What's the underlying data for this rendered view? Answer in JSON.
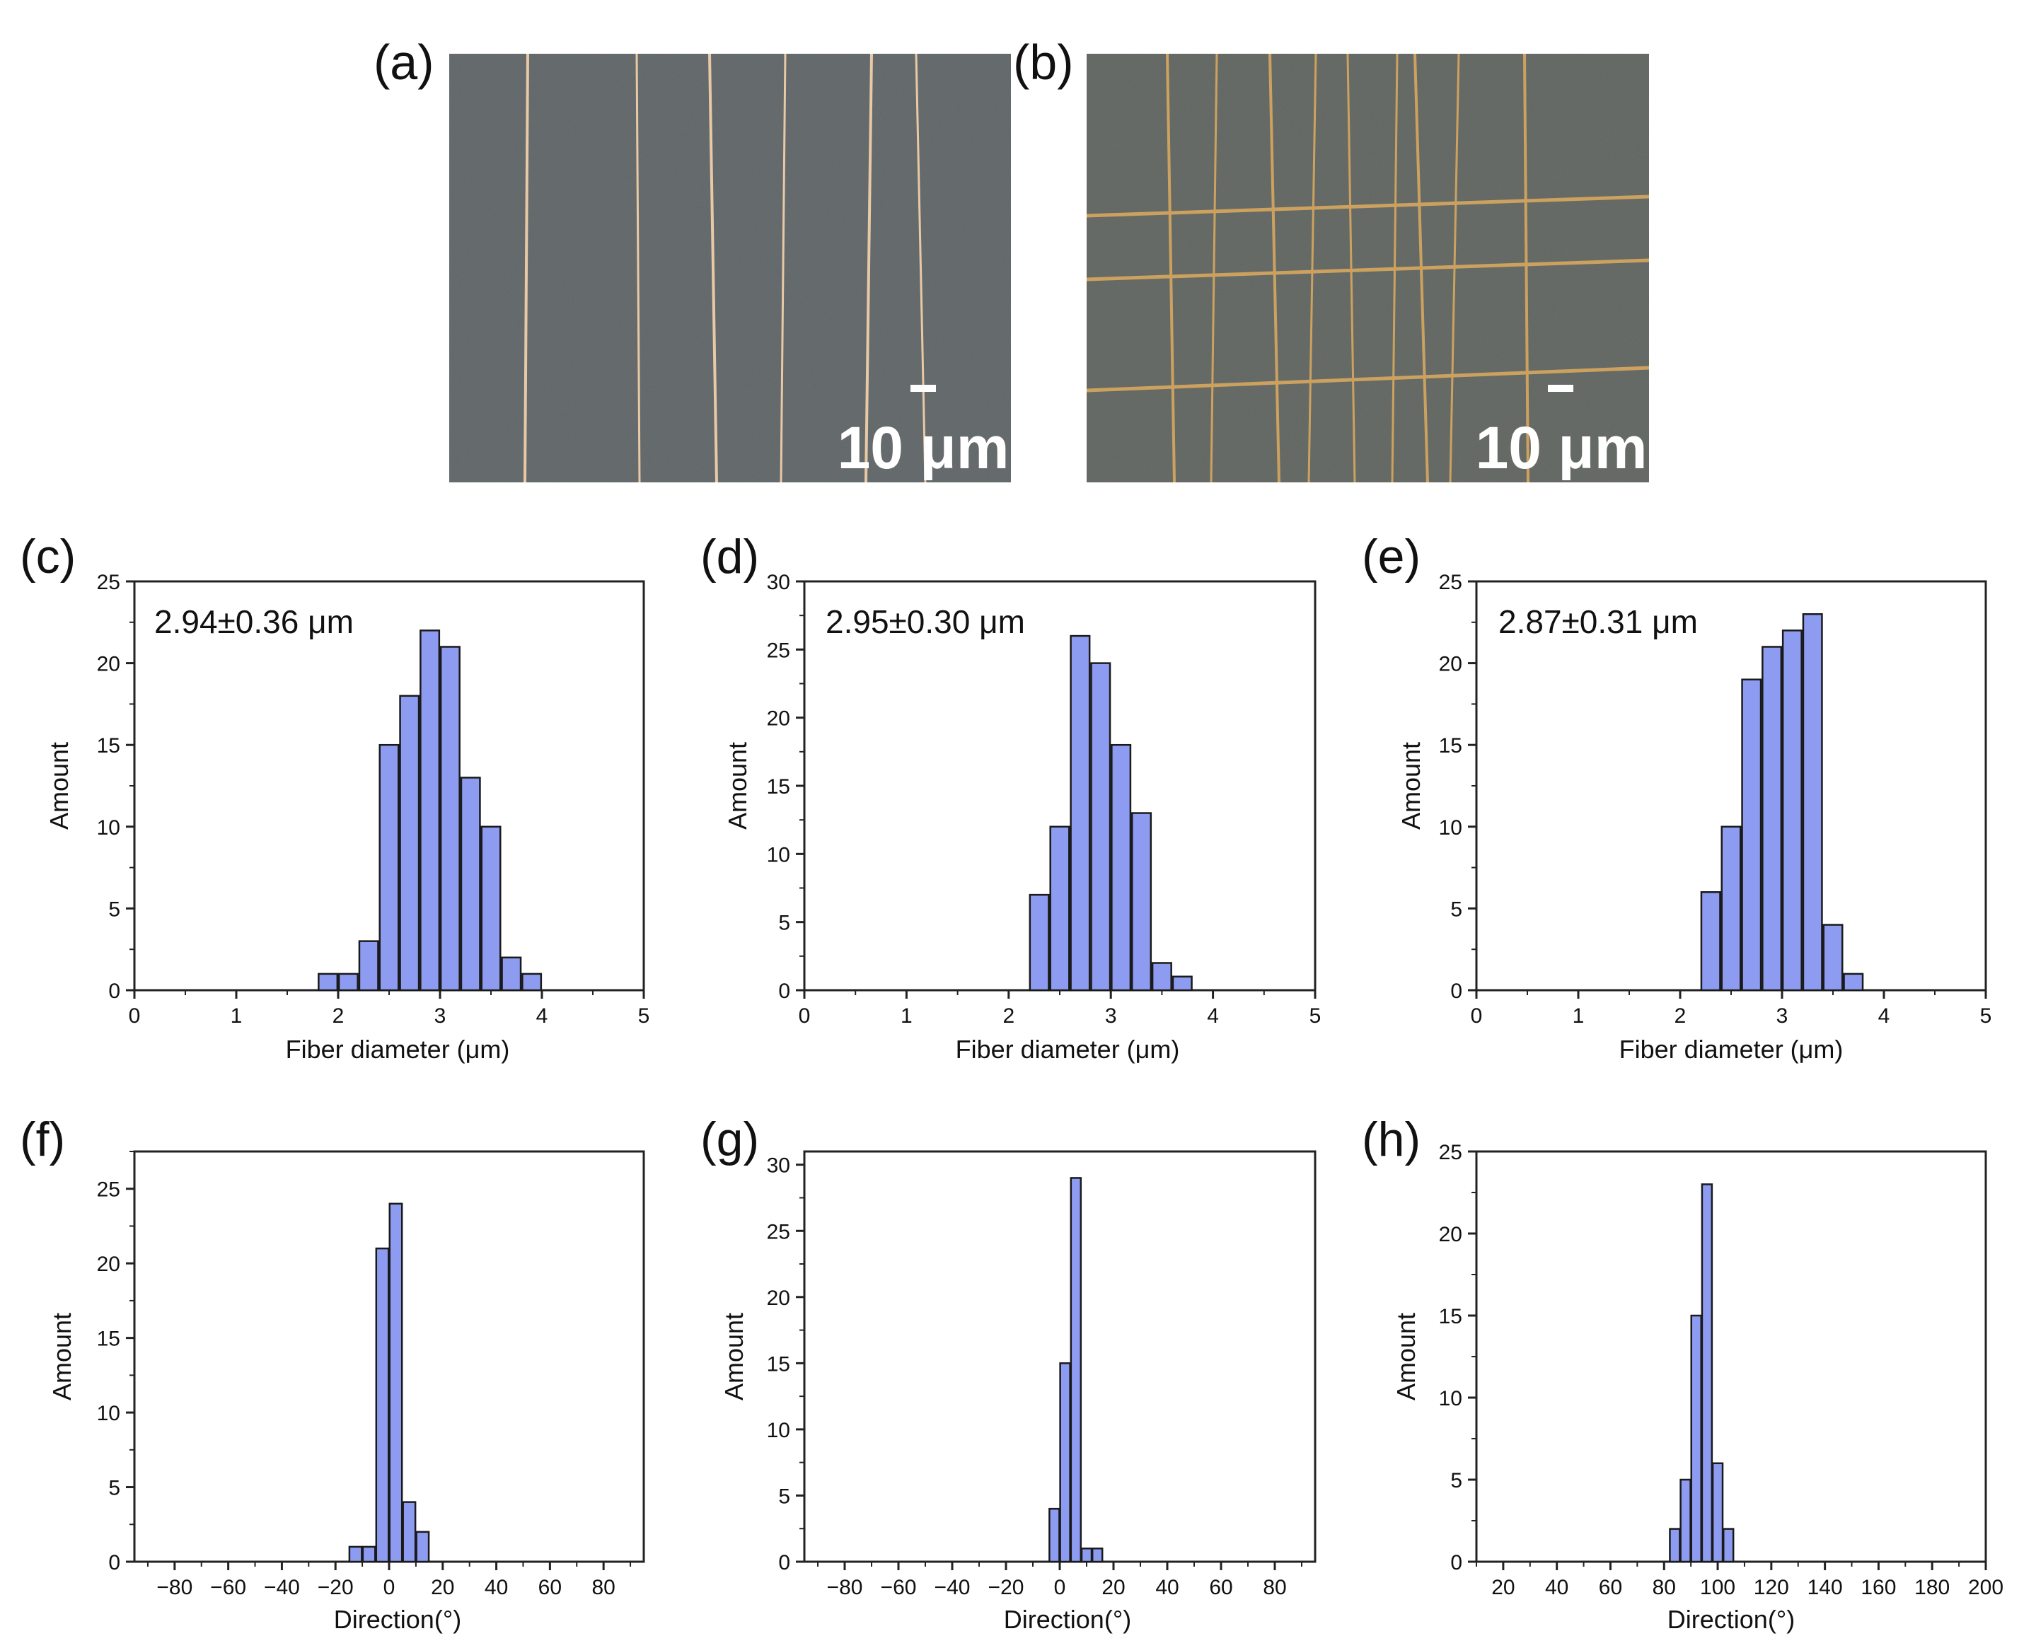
{
  "micrographs": [
    {
      "panel_label": "(a)",
      "scale_bar_label": "10 μm",
      "pattern": "aligned fibers"
    },
    {
      "panel_label": "(b)",
      "scale_bar_label": "10 μm",
      "pattern": "crossed grid fibers"
    }
  ],
  "colors": {
    "bar_fill": "#8d9cf0",
    "bar_stroke": "#1a1a1a",
    "micrograph_bg": "#5f6467",
    "fiber": "#e8c9a6",
    "scale_text": "#ffffff"
  },
  "chart_data": [
    {
      "panel_label": "(c)",
      "type": "bar",
      "annotation": "2.94±0.36 μm",
      "xlabel": "Fiber diameter (μm)",
      "ylabel": "Amount",
      "xlim": [
        0,
        5
      ],
      "ylim": [
        0,
        25
      ],
      "xticks": [
        0,
        1,
        2,
        3,
        4,
        5
      ],
      "yticks": [
        0,
        5,
        10,
        15,
        20,
        25
      ],
      "bin_width": 0.2,
      "x": [
        1.9,
        2.1,
        2.3,
        2.5,
        2.7,
        2.9,
        3.1,
        3.3,
        3.5,
        3.7,
        3.9
      ],
      "values": [
        1,
        1,
        3,
        15,
        18,
        22,
        21,
        13,
        10,
        2,
        1
      ]
    },
    {
      "panel_label": "(d)",
      "type": "bar",
      "annotation": "2.95±0.30 μm",
      "xlabel": "Fiber diameter (μm)",
      "ylabel": "Amount",
      "xlim": [
        0,
        5
      ],
      "ylim": [
        0,
        30
      ],
      "xticks": [
        0,
        1,
        2,
        3,
        4,
        5
      ],
      "yticks": [
        0,
        5,
        10,
        15,
        20,
        25,
        30
      ],
      "bin_width": 0.2,
      "x": [
        2.3,
        2.5,
        2.7,
        2.9,
        3.1,
        3.3,
        3.5,
        3.7
      ],
      "values": [
        7,
        12,
        26,
        24,
        18,
        13,
        2,
        1
      ]
    },
    {
      "panel_label": "(e)",
      "type": "bar",
      "annotation": "2.87±0.31 μm",
      "xlabel": "Fiber diameter (μm)",
      "ylabel": "Amount",
      "xlim": [
        0,
        5
      ],
      "ylim": [
        0,
        25
      ],
      "xticks": [
        0,
        1,
        2,
        3,
        4,
        5
      ],
      "yticks": [
        0,
        5,
        10,
        15,
        20,
        25
      ],
      "bin_width": 0.2,
      "x": [
        2.3,
        2.5,
        2.7,
        2.9,
        3.1,
        3.3,
        3.5,
        3.7
      ],
      "values": [
        6,
        10,
        19,
        21,
        22,
        23,
        4,
        1
      ]
    },
    {
      "panel_label": "(f)",
      "type": "bar",
      "annotation": "",
      "xlabel": "Direction(°)",
      "ylabel": "Amount",
      "xlim": [
        -95,
        95
      ],
      "ylim": [
        0,
        27.5
      ],
      "xticks": [
        -80,
        -60,
        -40,
        -20,
        0,
        20,
        40,
        60,
        80
      ],
      "yticks": [
        0,
        5,
        10,
        15,
        20,
        25
      ],
      "bin_width": 5,
      "x": [
        -12.5,
        -7.5,
        -2.5,
        2.5,
        7.5,
        12.5
      ],
      "values": [
        1,
        1,
        21,
        24,
        4,
        2
      ]
    },
    {
      "panel_label": "(g)",
      "type": "bar",
      "annotation": "",
      "xlabel": "Direction(°)",
      "ylabel": "Amount",
      "xlim": [
        -95,
        95
      ],
      "ylim": [
        0,
        31
      ],
      "xticks": [
        -80,
        -60,
        -40,
        -20,
        0,
        20,
        40,
        60,
        80
      ],
      "yticks": [
        0,
        5,
        10,
        15,
        20,
        25,
        30
      ],
      "bin_width": 4,
      "x": [
        -2,
        2,
        6,
        10,
        14,
        18
      ],
      "values": [
        4,
        15,
        29,
        1,
        1,
        0
      ]
    },
    {
      "panel_label": "(h)",
      "type": "bar",
      "annotation": "",
      "xlabel": "Direction(°)",
      "ylabel": "Amount",
      "xlim": [
        10,
        200
      ],
      "ylim": [
        0,
        25
      ],
      "xticks": [
        20,
        40,
        60,
        80,
        100,
        120,
        140,
        160,
        180,
        200
      ],
      "yticks": [
        0,
        5,
        10,
        15,
        20,
        25
      ],
      "bin_width": 4,
      "x": [
        84,
        88,
        92,
        96,
        100,
        104
      ],
      "values": [
        2,
        5,
        15,
        23,
        6,
        2
      ]
    }
  ]
}
